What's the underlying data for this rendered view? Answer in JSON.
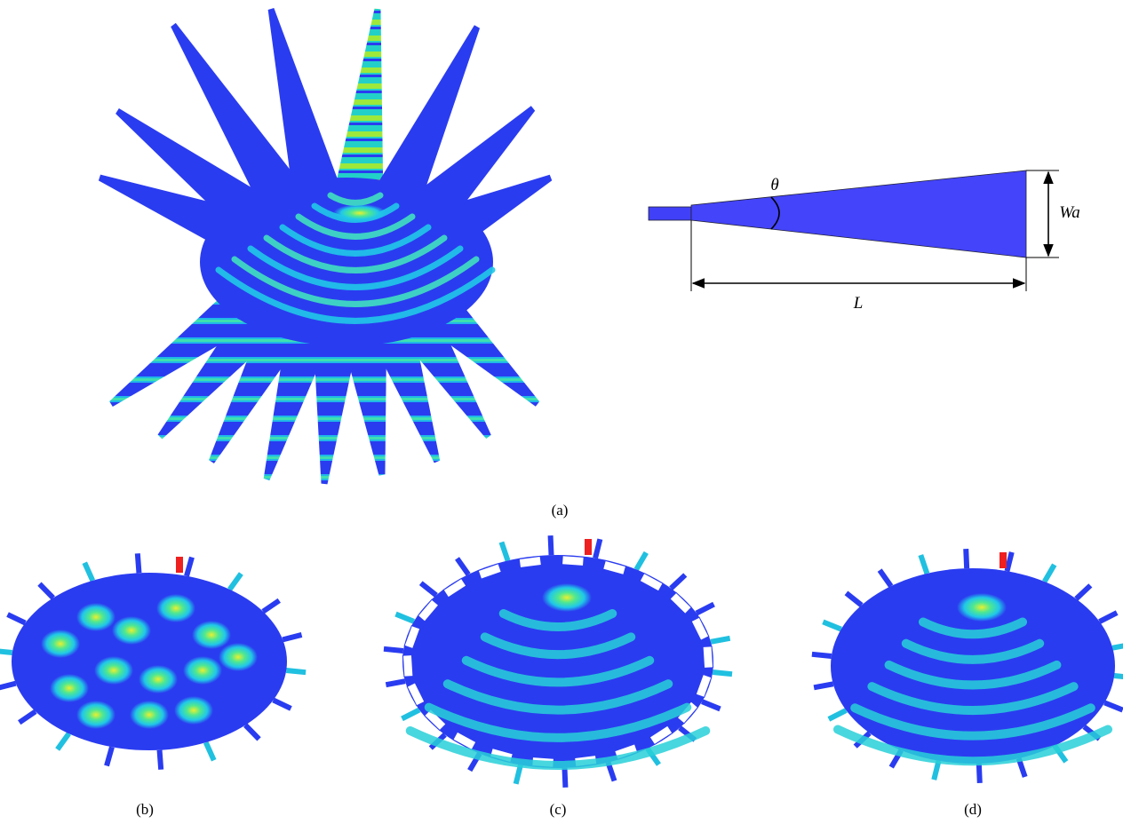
{
  "panels": [
    {
      "label": "(a)"
    },
    {
      "label": "(b)"
    },
    {
      "label": "(c)"
    },
    {
      "label": "(d)"
    }
  ],
  "diagram": {
    "angle": "θ",
    "width": "Wa",
    "length": "L"
  }
}
